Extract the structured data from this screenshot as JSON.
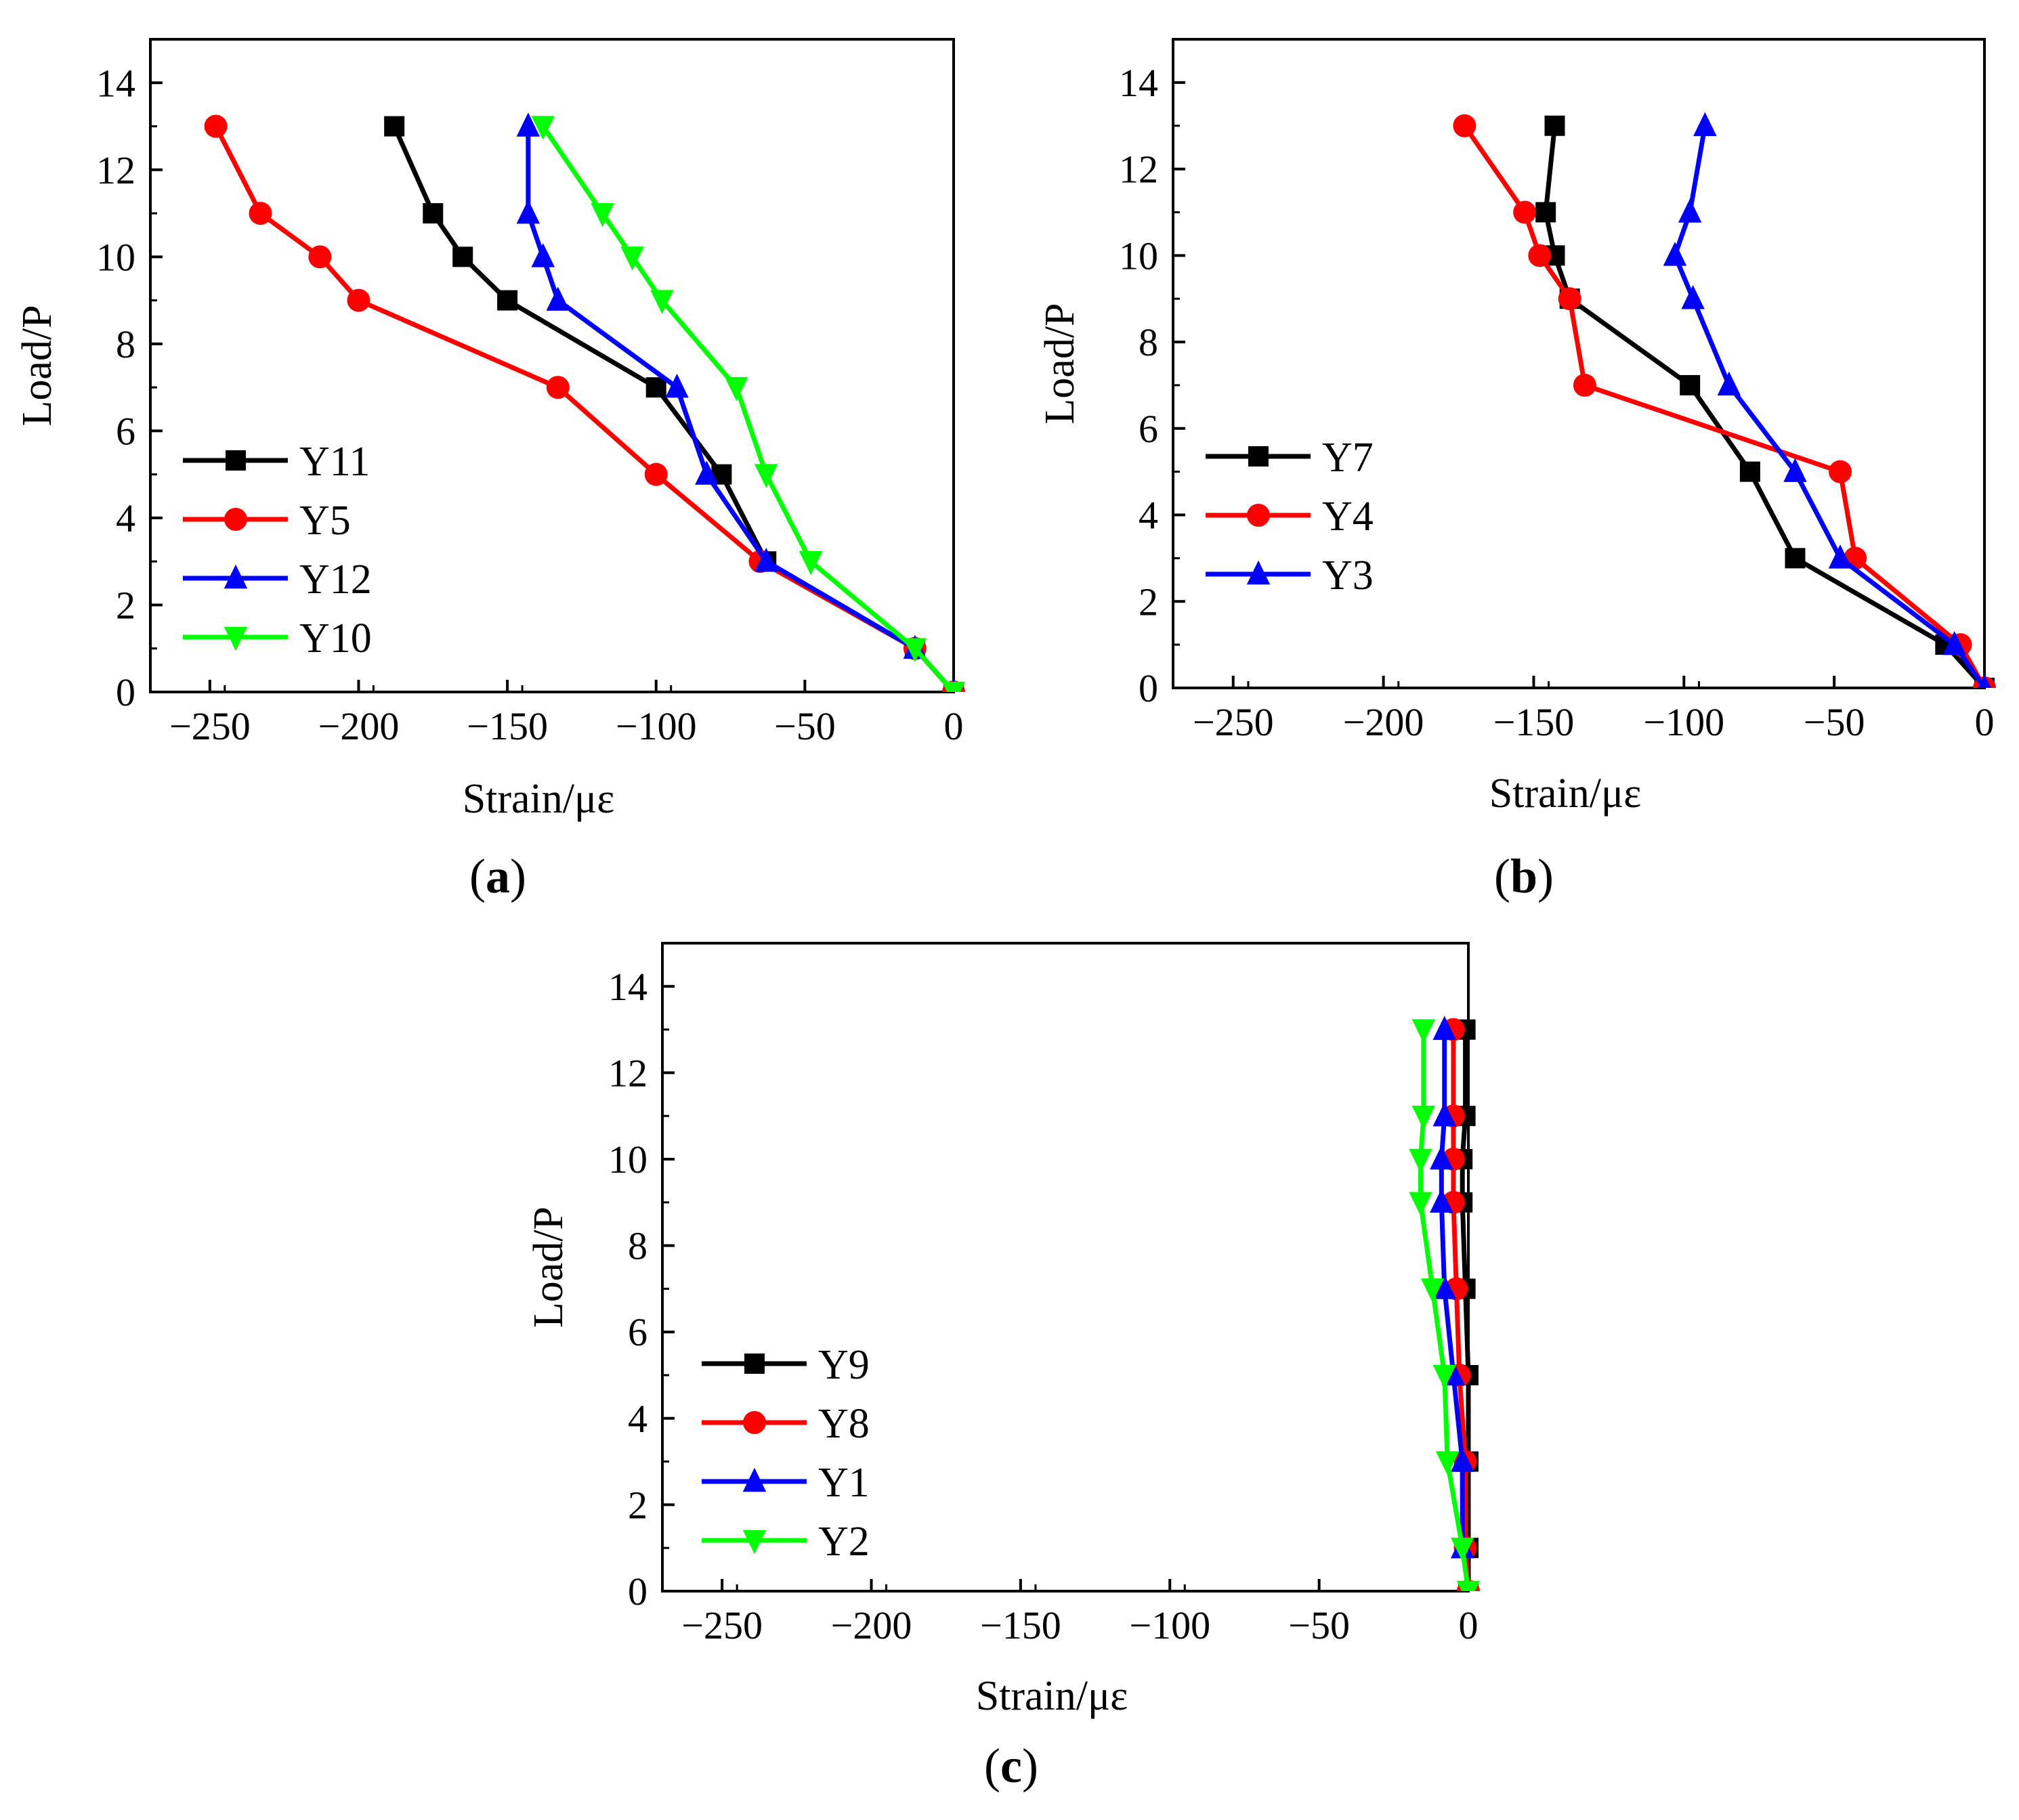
{
  "chart_data": [
    {
      "type": "line",
      "panel_label": "a",
      "xlabel": "Strain/με",
      "ylabel": "Load/P",
      "xlim": [
        -270,
        0
      ],
      "ylim": [
        0,
        15
      ],
      "xticks": [
        -250,
        -200,
        -150,
        -100,
        -50,
        0
      ],
      "xtick_labels": [
        "−250",
        "−200",
        "−150",
        "−100",
        "−50",
        "0"
      ],
      "yticks": [
        0,
        2,
        4,
        6,
        8,
        10,
        12,
        14
      ],
      "ytick_labels": [
        "0",
        "2",
        "4",
        "6",
        "8",
        "10",
        "12",
        "14"
      ],
      "legend_position": "lower-left",
      "series": [
        {
          "name": "Y11",
          "color": "#000000",
          "marker": "square",
          "points": [
            [
              0,
              0
            ],
            [
              -13,
              1
            ],
            [
              -63,
              3
            ],
            [
              -78,
              5
            ],
            [
              -100,
              7
            ],
            [
              -150,
              9
            ],
            [
              -165,
              10
            ],
            [
              -175,
              11
            ],
            [
              -188,
              13
            ]
          ]
        },
        {
          "name": "Y5",
          "color": "#ff0000",
          "marker": "circle",
          "points": [
            [
              0,
              0
            ],
            [
              -13,
              1
            ],
            [
              -65,
              3
            ],
            [
              -100,
              5
            ],
            [
              -133,
              7
            ],
            [
              -200,
              9
            ],
            [
              -213,
              10
            ],
            [
              -233,
              11
            ],
            [
              -248,
              13
            ]
          ]
        },
        {
          "name": "Y12",
          "color": "#0000ff",
          "marker": "triangle-up",
          "points": [
            [
              0,
              0
            ],
            [
              -13,
              1
            ],
            [
              -63,
              3
            ],
            [
              -83,
              5
            ],
            [
              -93,
              7
            ],
            [
              -133,
              9
            ],
            [
              -138,
              10
            ],
            [
              -143,
              11
            ],
            [
              -143,
              13
            ]
          ]
        },
        {
          "name": "Y10",
          "color": "#00ff00",
          "marker": "triangle-down",
          "points": [
            [
              0,
              0
            ],
            [
              -13,
              1
            ],
            [
              -48,
              3
            ],
            [
              -63,
              5
            ],
            [
              -73,
              7
            ],
            [
              -98,
              9
            ],
            [
              -108,
              10
            ],
            [
              -118,
              11
            ],
            [
              -138,
              13
            ]
          ]
        }
      ]
    },
    {
      "type": "line",
      "panel_label": "b",
      "xlabel": "Strain/με",
      "ylabel": "Load/P",
      "xlim": [
        -270,
        0
      ],
      "ylim": [
        0,
        15
      ],
      "xticks": [
        -250,
        -200,
        -150,
        -100,
        -50,
        0
      ],
      "xtick_labels": [
        "−250",
        "−200",
        "−150",
        "−100",
        "−50",
        "0"
      ],
      "yticks": [
        0,
        2,
        4,
        6,
        8,
        10,
        12,
        14
      ],
      "ytick_labels": [
        "0",
        "2",
        "4",
        "6",
        "8",
        "10",
        "12",
        "14"
      ],
      "legend_position": "middle-left",
      "series": [
        {
          "name": "Y7",
          "color": "#000000",
          "marker": "square",
          "points": [
            [
              0,
              0
            ],
            [
              -13,
              1
            ],
            [
              -63,
              3
            ],
            [
              -78,
              5
            ],
            [
              -98,
              7
            ],
            [
              -138,
              9
            ],
            [
              -143,
              10
            ],
            [
              -146,
              11
            ],
            [
              -143,
              13
            ]
          ]
        },
        {
          "name": "Y4",
          "color": "#ff0000",
          "marker": "circle",
          "points": [
            [
              0,
              0
            ],
            [
              -8,
              1
            ],
            [
              -43,
              3
            ],
            [
              -48,
              5
            ],
            [
              -133,
              7
            ],
            [
              -138,
              9
            ],
            [
              -148,
              10
            ],
            [
              -153,
              11
            ],
            [
              -173,
              13
            ]
          ]
        },
        {
          "name": "Y3",
          "color": "#0000ff",
          "marker": "triangle-up",
          "points": [
            [
              0,
              0
            ],
            [
              -10,
              1
            ],
            [
              -48,
              3
            ],
            [
              -63,
              5
            ],
            [
              -85,
              7
            ],
            [
              -97,
              9
            ],
            [
              -103,
              10
            ],
            [
              -98,
              11
            ],
            [
              -93,
              13
            ]
          ]
        }
      ]
    },
    {
      "type": "line",
      "panel_label": "c",
      "xlabel": "Strain/με",
      "ylabel": "Load/P",
      "xlim": [
        -270,
        0
      ],
      "ylim": [
        0,
        15
      ],
      "xticks": [
        -250,
        -200,
        -150,
        -100,
        -50,
        0
      ],
      "xtick_labels": [
        "−250",
        "−200",
        "−150",
        "−100",
        "−50",
        "0"
      ],
      "yticks": [
        0,
        2,
        4,
        6,
        8,
        10,
        12,
        14
      ],
      "ytick_labels": [
        "0",
        "2",
        "4",
        "6",
        "8",
        "10",
        "12",
        "14"
      ],
      "legend_position": "lower-left",
      "series": [
        {
          "name": "Y9",
          "color": "#000000",
          "marker": "square",
          "points": [
            [
              0,
              0
            ],
            [
              0,
              1
            ],
            [
              0,
              3
            ],
            [
              0,
              5
            ],
            [
              -1,
              7
            ],
            [
              -2,
              9
            ],
            [
              -2,
              10
            ],
            [
              -1,
              11
            ],
            [
              -1,
              13
            ]
          ]
        },
        {
          "name": "Y8",
          "color": "#ff0000",
          "marker": "circle",
          "points": [
            [
              0,
              0
            ],
            [
              -1,
              1
            ],
            [
              -1,
              3
            ],
            [
              -3,
              5
            ],
            [
              -4,
              7
            ],
            [
              -5,
              9
            ],
            [
              -5,
              10
            ],
            [
              -5,
              11
            ],
            [
              -5,
              13
            ]
          ]
        },
        {
          "name": "Y1",
          "color": "#0000ff",
          "marker": "triangle-up",
          "points": [
            [
              0,
              0
            ],
            [
              -2,
              1
            ],
            [
              -2,
              3
            ],
            [
              -5,
              5
            ],
            [
              -8,
              7
            ],
            [
              -9,
              9
            ],
            [
              -9,
              10
            ],
            [
              -8,
              11
            ],
            [
              -8,
              13
            ]
          ]
        },
        {
          "name": "Y2",
          "color": "#00ff00",
          "marker": "triangle-down",
          "points": [
            [
              0,
              0
            ],
            [
              -2,
              1
            ],
            [
              -7,
              3
            ],
            [
              -8,
              5
            ],
            [
              -12,
              7
            ],
            [
              -16,
              9
            ],
            [
              -16,
              10
            ],
            [
              -15,
              11
            ],
            [
              -15,
              13
            ]
          ]
        }
      ]
    }
  ]
}
